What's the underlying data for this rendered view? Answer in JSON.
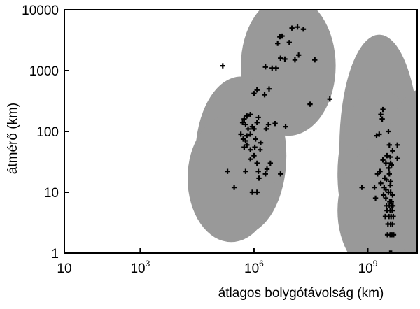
{
  "chart_data": {
    "type": "scatter",
    "title": "",
    "xlabel": "átlagos bolygótávolság (km)",
    "ylabel": "átmérő (km)",
    "x_scale": "log",
    "y_scale": "log",
    "xlim": [
      10,
      20000000000
    ],
    "ylim": [
      1,
      10000
    ],
    "grid": false,
    "x_ticks": [
      {
        "value": 10,
        "base": "10",
        "exp": ""
      },
      {
        "value": 1000,
        "base": "10",
        "exp": "3"
      },
      {
        "value": 1000000,
        "base": "10",
        "exp": "6"
      },
      {
        "value": 1000000000,
        "base": "10",
        "exp": "9"
      }
    ],
    "y_ticks": [
      {
        "value": 1,
        "label": "1"
      },
      {
        "value": 10,
        "label": "10"
      },
      {
        "value": 100,
        "label": "100"
      },
      {
        "value": 1000,
        "label": "1000"
      },
      {
        "value": 10000,
        "label": "10000"
      }
    ],
    "regions": [
      {
        "cx": 8000000,
        "cy": 1200,
        "rx": 1.25,
        "ry": 1.15
      },
      {
        "cx": 450000,
        "cy": 40,
        "rx": 1.2,
        "ry": 1.3
      },
      {
        "cx": 250000,
        "cy": 17,
        "rx": 1.15,
        "ry": 1.05
      },
      {
        "cx": 2000000000,
        "cy": 55,
        "rx": 1.05,
        "ry": 1.85
      },
      {
        "cx": 2000000000,
        "cy": 20,
        "rx": 1.1,
        "ry": 1.4
      },
      {
        "cx": 2000000000,
        "cy": 5,
        "rx": 1.1,
        "ry": 1.05
      },
      {
        "cx": 30000000000,
        "cy": 20,
        "rx": 1.1,
        "ry": 1.4
      }
    ],
    "region_color": "#999999",
    "marker_color": "#000000",
    "points": [
      [
        150000,
        1200
      ],
      [
        1000000,
        420
      ],
      [
        1200000,
        480
      ],
      [
        2500000,
        500
      ],
      [
        1900000,
        400
      ],
      [
        2000000,
        1150
      ],
      [
        3000000,
        1100
      ],
      [
        3800000,
        1100
      ],
      [
        5000000,
        1600
      ],
      [
        6500000,
        1550
      ],
      [
        4200000,
        2800
      ],
      [
        4800000,
        3600
      ],
      [
        5500000,
        3700
      ],
      [
        8500000,
        2900
      ],
      [
        10000000,
        5000
      ],
      [
        14000000,
        5200
      ],
      [
        20000000,
        4800
      ],
      [
        12000000,
        1500
      ],
      [
        15000000,
        1800
      ],
      [
        40000000,
        1500
      ],
      [
        100000000,
        340
      ],
      [
        30000000,
        280
      ],
      [
        650000,
        180
      ],
      [
        800000,
        190
      ],
      [
        550000,
        160
      ],
      [
        600000,
        130
      ],
      [
        500000,
        140
      ],
      [
        1300000,
        170
      ],
      [
        1200000,
        140
      ],
      [
        2400000,
        130
      ],
      [
        2100000,
        110
      ],
      [
        3600000,
        135
      ],
      [
        6800000,
        120
      ],
      [
        1000000,
        110
      ],
      [
        700000,
        110
      ],
      [
        800000,
        90
      ],
      [
        900000,
        120
      ],
      [
        450000,
        90
      ],
      [
        650000,
        85
      ],
      [
        520000,
        75
      ],
      [
        600000,
        70
      ],
      [
        550000,
        55
      ],
      [
        650000,
        60
      ],
      [
        800000,
        50
      ],
      [
        1100000,
        75
      ],
      [
        1050000,
        55
      ],
      [
        1500000,
        65
      ],
      [
        1450000,
        50
      ],
      [
        1000000,
        40
      ],
      [
        800000,
        35
      ],
      [
        1200000,
        30
      ],
      [
        1300000,
        22
      ],
      [
        1350000,
        17
      ],
      [
        2000000,
        20
      ],
      [
        2200000,
        24
      ],
      [
        2700000,
        30
      ],
      [
        5000000,
        20
      ],
      [
        600000,
        22
      ],
      [
        900000,
        10
      ],
      [
        1200000,
        10
      ],
      [
        300000,
        12
      ],
      [
        200000,
        22
      ],
      [
        2500000000,
        230
      ],
      [
        2200000000,
        190
      ],
      [
        2400000000,
        160
      ],
      [
        1700000000,
        85
      ],
      [
        2000000000,
        90
      ],
      [
        3500000000,
        100
      ],
      [
        3700000000,
        60
      ],
      [
        6000000000,
        60
      ],
      [
        4500000000,
        48
      ],
      [
        3200000000,
        40
      ],
      [
        3900000000,
        38
      ],
      [
        6000000000,
        36
      ],
      [
        3000000000,
        30
      ],
      [
        4000000000,
        30
      ],
      [
        2500000000,
        34
      ],
      [
        4200000000,
        28
      ],
      [
        3600000000,
        25
      ],
      [
        2100000000,
        22
      ],
      [
        1800000000,
        20
      ],
      [
        3700000000,
        20
      ],
      [
        2800000000,
        17
      ],
      [
        3100000000,
        16
      ],
      [
        4000000000,
        15
      ],
      [
        2200000000,
        14
      ],
      [
        3900000000,
        13
      ],
      [
        2700000000,
        12
      ],
      [
        1500000000,
        12
      ],
      [
        3000000000,
        11
      ],
      [
        3500000000,
        10
      ],
      [
        4000000000,
        10
      ],
      [
        2600000000,
        9
      ],
      [
        4500000000,
        9
      ],
      [
        1600000000,
        8
      ],
      [
        3000000000,
        8
      ],
      [
        3800000000,
        7
      ],
      [
        4200000000,
        7
      ],
      [
        3100000000,
        6
      ],
      [
        3700000000,
        6
      ],
      [
        4300000000,
        6
      ],
      [
        4600000000,
        6
      ],
      [
        3200000000,
        5
      ],
      [
        3900000000,
        5
      ],
      [
        4400000000,
        5
      ],
      [
        2900000000,
        4
      ],
      [
        3600000000,
        4
      ],
      [
        4100000000,
        4
      ],
      [
        4700000000,
        4
      ],
      [
        3400000000,
        3
      ],
      [
        4000000000,
        3
      ],
      [
        4500000000,
        3
      ],
      [
        3300000000,
        2
      ],
      [
        3900000000,
        2
      ],
      [
        4300000000,
        2
      ],
      [
        4800000000,
        2
      ],
      [
        3800000000,
        1
      ],
      [
        4200000000,
        1
      ],
      [
        700000000,
        12
      ]
    ]
  }
}
